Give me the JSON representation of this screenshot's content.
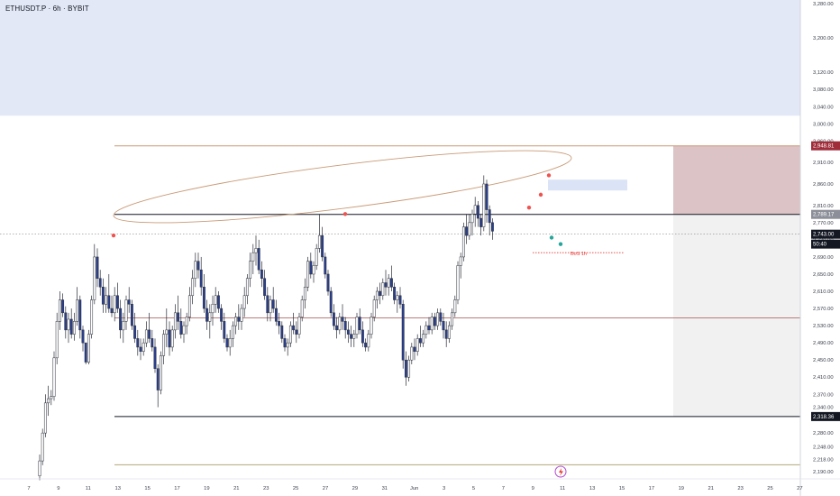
{
  "header": {
    "symbol_title": "ETHUSDT.P · 6h · BYBIT"
  },
  "colors": {
    "background": "#ffffff",
    "up_candle_fill": "#ffffff",
    "candle_outline": "#2a2e39",
    "down_candle_fill": "#2a3f8f",
    "supply_zone": "#e3e8f6",
    "target_zone": "#dcc3c6",
    "stop_zone": "#f1f1f1",
    "orange_lines": "#c99a76",
    "high_dot": "#ef5350",
    "low_dot": "#26a69a",
    "bos_red": "#e53935"
  },
  "chart_data": {
    "type": "candlestick",
    "title": "ETHUSDT.P · 6h · BYBIT",
    "ylim": [
      2175,
      3290
    ],
    "y_ticks": [
      "3,280.00",
      "3,200.00",
      "3,120.00",
      "3,080.00",
      "3,040.00",
      "3,000.00",
      "2,960.00",
      "2,910.00",
      "2,860.00",
      "2,810.00",
      "2,770.00",
      "2,730.00",
      "2,690.00",
      "2,650.00",
      "2,610.00",
      "2,570.00",
      "2,530.00",
      "2,490.00",
      "2,450.00",
      "2,410.00",
      "2,370.00",
      "2,340.00",
      "2,280.00",
      "2,248.00",
      "2,218.00",
      "2,190.00"
    ],
    "x_ticks": [
      "7",
      "9",
      "11",
      "13",
      "15",
      "17",
      "19",
      "21",
      "23",
      "25",
      "27",
      "29",
      "31",
      "Jun",
      "3",
      "5",
      "7",
      "9",
      "11",
      "13",
      "15",
      "17",
      "19",
      "21",
      "23",
      "25",
      "27"
    ],
    "x_index_range": [
      0,
      330
    ],
    "horizontal_levels": [
      2948.81,
      2789.17,
      2548,
      2318.36,
      2206
    ],
    "price_labels": [
      {
        "text": "2,948.81",
        "style": "target"
      },
      {
        "text": "2,789.17",
        "style": "entry"
      },
      {
        "text": "2,743.00",
        "style": "current"
      },
      {
        "text": "50:40",
        "style": "countdown"
      },
      {
        "text": "2,318.36",
        "style": "stop"
      }
    ],
    "annotations": [
      {
        "text": "BoS 1h"
      }
    ],
    "candles": [
      [
        2180,
        2230,
        2170,
        2215
      ],
      [
        2215,
        2290,
        2205,
        2280
      ],
      [
        2280,
        2370,
        2270,
        2350
      ],
      [
        2350,
        2390,
        2320,
        2360
      ],
      [
        2360,
        2380,
        2345,
        2365
      ],
      [
        2365,
        2470,
        2355,
        2455
      ],
      [
        2455,
        2560,
        2440,
        2540
      ],
      [
        2540,
        2610,
        2520,
        2590
      ],
      [
        2590,
        2605,
        2550,
        2560
      ],
      [
        2560,
        2575,
        2500,
        2520
      ],
      [
        2520,
        2560,
        2490,
        2545
      ],
      [
        2545,
        2570,
        2500,
        2510
      ],
      [
        2510,
        2560,
        2495,
        2540
      ],
      [
        2540,
        2620,
        2530,
        2590
      ],
      [
        2590,
        2600,
        2500,
        2520
      ],
      [
        2520,
        2530,
        2470,
        2490
      ],
      [
        2490,
        2480,
        2440,
        2445
      ],
      [
        2445,
        2520,
        2440,
        2510
      ],
      [
        2510,
        2600,
        2500,
        2590
      ],
      [
        2590,
        2720,
        2580,
        2690
      ],
      [
        2690,
        2710,
        2620,
        2640
      ],
      [
        2640,
        2660,
        2600,
        2620
      ],
      [
        2620,
        2640,
        2560,
        2580
      ],
      [
        2580,
        2620,
        2560,
        2600
      ],
      [
        2600,
        2650,
        2560,
        2570
      ],
      [
        2570,
        2600,
        2550,
        2560
      ],
      [
        2560,
        2620,
        2540,
        2600
      ],
      [
        2600,
        2630,
        2560,
        2570
      ],
      [
        2570,
        2590,
        2500,
        2520
      ],
      [
        2520,
        2560,
        2490,
        2540
      ],
      [
        2540,
        2600,
        2520,
        2590
      ],
      [
        2590,
        2620,
        2560,
        2580
      ],
      [
        2580,
        2590,
        2520,
        2530
      ],
      [
        2530,
        2560,
        2490,
        2500
      ],
      [
        2500,
        2520,
        2460,
        2480
      ],
      [
        2480,
        2500,
        2450,
        2470
      ],
      [
        2470,
        2500,
        2460,
        2490
      ],
      [
        2490,
        2540,
        2480,
        2520
      ],
      [
        2520,
        2560,
        2490,
        2500
      ],
      [
        2500,
        2520,
        2470,
        2480
      ],
      [
        2480,
        2500,
        2420,
        2430
      ],
      [
        2430,
        2440,
        2340,
        2380
      ],
      [
        2380,
        2470,
        2370,
        2460
      ],
      [
        2460,
        2520,
        2440,
        2510
      ],
      [
        2510,
        2570,
        2480,
        2520
      ],
      [
        2520,
        2540,
        2460,
        2480
      ],
      [
        2480,
        2530,
        2470,
        2520
      ],
      [
        2520,
        2580,
        2500,
        2560
      ],
      [
        2560,
        2600,
        2520,
        2540
      ],
      [
        2540,
        2570,
        2500,
        2510
      ],
      [
        2510,
        2540,
        2490,
        2530
      ],
      [
        2530,
        2560,
        2510,
        2550
      ],
      [
        2550,
        2620,
        2540,
        2600
      ],
      [
        2600,
        2660,
        2580,
        2640
      ],
      [
        2640,
        2700,
        2620,
        2680
      ],
      [
        2680,
        2700,
        2640,
        2660
      ],
      [
        2660,
        2690,
        2600,
        2620
      ],
      [
        2620,
        2650,
        2560,
        2570
      ],
      [
        2570,
        2590,
        2520,
        2540
      ],
      [
        2540,
        2580,
        2500,
        2560
      ],
      [
        2560,
        2600,
        2530,
        2580
      ],
      [
        2580,
        2620,
        2560,
        2600
      ],
      [
        2600,
        2610,
        2560,
        2570
      ],
      [
        2570,
        2580,
        2520,
        2540
      ],
      [
        2540,
        2560,
        2490,
        2500
      ],
      [
        2500,
        2510,
        2470,
        2480
      ],
      [
        2480,
        2520,
        2460,
        2500
      ],
      [
        2500,
        2540,
        2480,
        2530
      ],
      [
        2530,
        2560,
        2510,
        2550
      ],
      [
        2550,
        2580,
        2520,
        2540
      ],
      [
        2540,
        2580,
        2520,
        2570
      ],
      [
        2570,
        2620,
        2550,
        2600
      ],
      [
        2600,
        2650,
        2580,
        2640
      ],
      [
        2640,
        2700,
        2620,
        2680
      ],
      [
        2680,
        2720,
        2650,
        2700
      ],
      [
        2700,
        2740,
        2670,
        2710
      ],
      [
        2710,
        2730,
        2650,
        2660
      ],
      [
        2660,
        2680,
        2620,
        2640
      ],
      [
        2640,
        2660,
        2590,
        2600
      ],
      [
        2600,
        2620,
        2540,
        2560
      ],
      [
        2560,
        2600,
        2540,
        2590
      ],
      [
        2590,
        2620,
        2560,
        2570
      ],
      [
        2570,
        2590,
        2530,
        2540
      ],
      [
        2540,
        2560,
        2510,
        2530
      ],
      [
        2530,
        2540,
        2490,
        2500
      ],
      [
        2500,
        2510,
        2470,
        2480
      ],
      [
        2480,
        2500,
        2460,
        2490
      ],
      [
        2490,
        2540,
        2480,
        2530
      ],
      [
        2530,
        2560,
        2510,
        2520
      ],
      [
        2520,
        2540,
        2490,
        2510
      ],
      [
        2510,
        2560,
        2500,
        2550
      ],
      [
        2550,
        2600,
        2540,
        2590
      ],
      [
        2590,
        2640,
        2570,
        2620
      ],
      [
        2620,
        2690,
        2610,
        2680
      ],
      [
        2680,
        2700,
        2640,
        2650
      ],
      [
        2650,
        2680,
        2630,
        2670
      ],
      [
        2670,
        2720,
        2660,
        2710
      ],
      [
        2710,
        2790,
        2700,
        2740
      ],
      [
        2740,
        2760,
        2680,
        2690
      ],
      [
        2690,
        2700,
        2640,
        2650
      ],
      [
        2650,
        2660,
        2600,
        2610
      ],
      [
        2610,
        2620,
        2550,
        2560
      ],
      [
        2560,
        2580,
        2520,
        2530
      ],
      [
        2530,
        2550,
        2500,
        2520
      ],
      [
        2520,
        2560,
        2510,
        2550
      ],
      [
        2550,
        2580,
        2520,
        2540
      ],
      [
        2540,
        2550,
        2500,
        2520
      ],
      [
        2520,
        2540,
        2490,
        2510
      ],
      [
        2510,
        2530,
        2480,
        2500
      ],
      [
        2500,
        2520,
        2480,
        2510
      ],
      [
        2510,
        2560,
        2500,
        2550
      ],
      [
        2550,
        2570,
        2510,
        2520
      ],
      [
        2520,
        2540,
        2480,
        2490
      ],
      [
        2490,
        2500,
        2470,
        2480
      ],
      [
        2480,
        2520,
        2470,
        2510
      ],
      [
        2510,
        2560,
        2500,
        2550
      ],
      [
        2550,
        2600,
        2540,
        2590
      ],
      [
        2590,
        2620,
        2570,
        2610
      ],
      [
        2610,
        2630,
        2580,
        2600
      ],
      [
        2600,
        2640,
        2590,
        2630
      ],
      [
        2630,
        2660,
        2600,
        2620
      ],
      [
        2620,
        2650,
        2600,
        2640
      ],
      [
        2640,
        2670,
        2610,
        2620
      ],
      [
        2620,
        2630,
        2580,
        2590
      ],
      [
        2590,
        2610,
        2560,
        2600
      ],
      [
        2600,
        2620,
        2570,
        2580
      ],
      [
        2580,
        2590,
        2430,
        2450
      ],
      [
        2450,
        2470,
        2390,
        2410
      ],
      [
        2410,
        2460,
        2400,
        2450
      ],
      [
        2450,
        2490,
        2440,
        2480
      ],
      [
        2480,
        2500,
        2450,
        2470
      ],
      [
        2470,
        2510,
        2460,
        2500
      ],
      [
        2500,
        2530,
        2480,
        2490
      ],
      [
        2490,
        2520,
        2480,
        2510
      ],
      [
        2510,
        2540,
        2500,
        2530
      ],
      [
        2530,
        2550,
        2510,
        2520
      ],
      [
        2520,
        2560,
        2510,
        2550
      ],
      [
        2550,
        2560,
        2520,
        2530
      ],
      [
        2530,
        2570,
        2520,
        2560
      ],
      [
        2560,
        2570,
        2530,
        2540
      ],
      [
        2540,
        2560,
        2500,
        2520
      ],
      [
        2520,
        2540,
        2480,
        2500
      ],
      [
        2500,
        2540,
        2490,
        2530
      ],
      [
        2530,
        2570,
        2520,
        2560
      ],
      [
        2560,
        2600,
        2550,
        2590
      ],
      [
        2590,
        2680,
        2580,
        2670
      ],
      [
        2670,
        2700,
        2640,
        2690
      ],
      [
        2690,
        2770,
        2680,
        2760
      ],
      [
        2760,
        2790,
        2720,
        2740
      ],
      [
        2740,
        2790,
        2730,
        2770
      ],
      [
        2770,
        2800,
        2740,
        2790
      ],
      [
        2790,
        2830,
        2760,
        2810
      ],
      [
        2810,
        2820,
        2760,
        2780
      ],
      [
        2780,
        2790,
        2740,
        2760
      ],
      [
        2760,
        2880,
        2750,
        2860
      ],
      [
        2860,
        2870,
        2770,
        2800
      ],
      [
        2800,
        2810,
        2740,
        2770
      ],
      [
        2770,
        2780,
        2730,
        2750
      ]
    ],
    "annotation_dots": [
      {
        "kind": "high"
      },
      {
        "kind": "high"
      },
      {
        "kind": "high"
      },
      {
        "kind": "high"
      },
      {
        "kind": "high"
      },
      {
        "kind": "low"
      },
      {
        "kind": "low"
      }
    ]
  }
}
